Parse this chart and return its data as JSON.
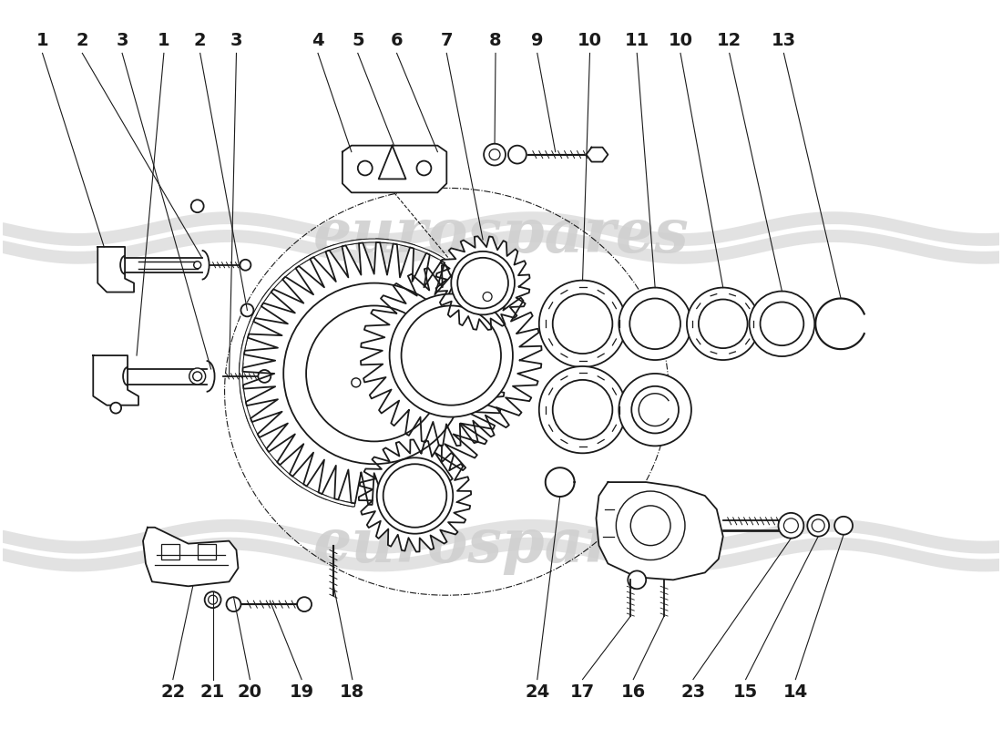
{
  "background_color": "#ffffff",
  "line_color": "#1a1a1a",
  "watermark_color": "#c8c8c8",
  "fig_width": 11.0,
  "fig_height": 8.0,
  "dpi": 100,
  "top_labels": [
    [
      "1",
      0.04
    ],
    [
      "2",
      0.085
    ],
    [
      "3",
      0.13
    ],
    [
      "1",
      0.175
    ],
    [
      "2",
      0.215
    ],
    [
      "3",
      0.255
    ],
    [
      "4",
      0.345
    ],
    [
      "5",
      0.39
    ],
    [
      "6",
      0.435
    ],
    [
      "7",
      0.49
    ],
    [
      "8",
      0.545
    ],
    [
      "9",
      0.59
    ],
    [
      "10",
      0.645
    ],
    [
      "11",
      0.7
    ],
    [
      "10",
      0.745
    ],
    [
      "12",
      0.8
    ],
    [
      "13",
      0.86
    ]
  ],
  "bottom_labels": [
    [
      "22",
      0.185
    ],
    [
      "21",
      0.23
    ],
    [
      "20",
      0.27
    ],
    [
      "19",
      0.33
    ],
    [
      "18",
      0.385
    ],
    [
      "24",
      0.59
    ],
    [
      "17",
      0.64
    ],
    [
      "16",
      0.695
    ],
    [
      "23",
      0.76
    ],
    [
      "15",
      0.82
    ],
    [
      "14",
      0.875
    ]
  ]
}
